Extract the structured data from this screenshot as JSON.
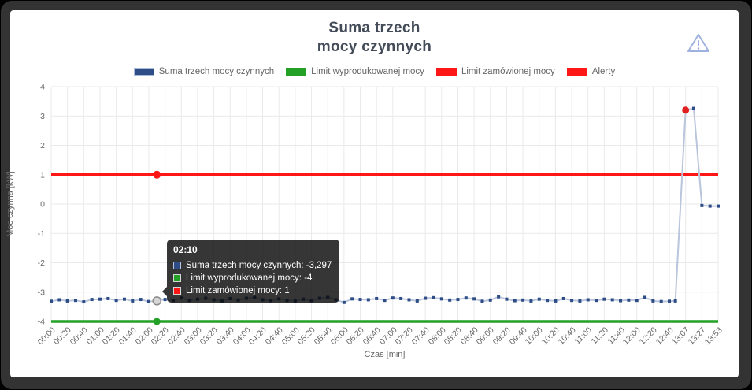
{
  "header": {
    "title_line1": "Suma trzech",
    "title_line2": "mocy czynnych"
  },
  "legend": {
    "items": [
      {
        "label": "Suma trzech mocy czynnych",
        "fill": "#2e4d87",
        "border": "#a9bbd8"
      },
      {
        "label": "Limit wyprodukowanej mocy",
        "fill": "#23a127",
        "border": "#23a127"
      },
      {
        "label": "Limit zamówionej mocy",
        "fill": "#ff1717",
        "border": "#ff1717"
      },
      {
        "label": "Alerty",
        "fill": "#ff1717",
        "border": "#ff1717"
      }
    ]
  },
  "colors": {
    "series_line": "#b9c5dc",
    "series_marker": "#2e4d87",
    "limit_green": "#23a127",
    "limit_red": "#ff1717",
    "alert_dot": "#e02020",
    "grid": "#e9e9e9",
    "tick_text": "#666666",
    "hover_gray_fill": "#d6d6d6",
    "hover_gray_stroke": "#8a8a8a",
    "warning_icon": "#9fb1de"
  },
  "tooltip": {
    "time": "02:10",
    "rows": [
      {
        "text": "Suma trzech mocy czynnych: -3,297",
        "fill": "#2e4d87",
        "border": "#b9c5dc"
      },
      {
        "text": "Limit wyprodukowanej mocy: -4",
        "fill": "#23a127",
        "border": "#d8d8d8"
      },
      {
        "text": "Limit zamówionej mocy: 1",
        "fill": "#ff1717",
        "border": "#d8d8d8"
      }
    ]
  },
  "chart_data": {
    "type": "line",
    "title": "Suma trzech mocy czynnych",
    "xlabel": "Czas [min]",
    "ylabel": "Moc czynna [kW]",
    "ylim": [
      -4,
      4
    ],
    "y_ticks": [
      4,
      3,
      2,
      1,
      0,
      -1,
      -2,
      -3,
      -4
    ],
    "grid": true,
    "legend_position": "top",
    "x_tick_labels": [
      "00:00",
      "00:20",
      "00:40",
      "01:00",
      "01:20",
      "01:40",
      "02:00",
      "02:20",
      "02:40",
      "03:00",
      "03:20",
      "03:40",
      "04:00",
      "04:20",
      "04:40",
      "05:00",
      "05:20",
      "05:40",
      "06:00",
      "06:20",
      "06:40",
      "07:00",
      "07:20",
      "07:40",
      "08:00",
      "08:20",
      "08:40",
      "09:00",
      "09:20",
      "09:40",
      "10:00",
      "10:20",
      "10:40",
      "11:00",
      "11:20",
      "11:40",
      "12:00",
      "12:20",
      "12:40",
      "13:07",
      "13:27",
      "13:53"
    ],
    "series": [
      {
        "name": "Suma trzech mocy czynnych",
        "points": [
          [
            "00:00",
            -3.31
          ],
          [
            "00:10",
            -3.26
          ],
          [
            "00:20",
            -3.3
          ],
          [
            "00:30",
            -3.28
          ],
          [
            "00:40",
            -3.33
          ],
          [
            "00:50",
            -3.25
          ],
          [
            "01:00",
            -3.24
          ],
          [
            "01:10",
            -3.22
          ],
          [
            "01:20",
            -3.28
          ],
          [
            "01:30",
            -3.24
          ],
          [
            "01:40",
            -3.3
          ],
          [
            "01:50",
            -3.25
          ],
          [
            "02:00",
            -3.32
          ],
          [
            "02:10",
            -3.297
          ],
          [
            "02:20",
            -3.25
          ],
          [
            "02:30",
            -3.28
          ],
          [
            "02:40",
            -3.2
          ],
          [
            "02:50",
            -3.28
          ],
          [
            "03:00",
            -3.24
          ],
          [
            "03:10",
            -3.21
          ],
          [
            "03:20",
            -3.26
          ],
          [
            "03:30",
            -3.3
          ],
          [
            "03:40",
            -3.22
          ],
          [
            "03:50",
            -3.27
          ],
          [
            "04:00",
            -3.21
          ],
          [
            "04:10",
            -3.18
          ],
          [
            "04:20",
            -3.26
          ],
          [
            "04:30",
            -3.29
          ],
          [
            "04:40",
            -3.23
          ],
          [
            "04:50",
            -3.28
          ],
          [
            "05:00",
            -3.3
          ],
          [
            "05:10",
            -3.24
          ],
          [
            "05:20",
            -3.29
          ],
          [
            "05:30",
            -3.21
          ],
          [
            "05:40",
            -3.18
          ],
          [
            "05:50",
            -3.26
          ],
          [
            "06:00",
            -3.35
          ],
          [
            "06:10",
            -3.23
          ],
          [
            "06:20",
            -3.25
          ],
          [
            "06:30",
            -3.26
          ],
          [
            "06:40",
            -3.22
          ],
          [
            "06:50",
            -3.28
          ],
          [
            "07:00",
            -3.2
          ],
          [
            "07:10",
            -3.22
          ],
          [
            "07:20",
            -3.26
          ],
          [
            "07:30",
            -3.3
          ],
          [
            "07:40",
            -3.21
          ],
          [
            "07:50",
            -3.19
          ],
          [
            "08:00",
            -3.23
          ],
          [
            "08:10",
            -3.27
          ],
          [
            "08:20",
            -3.25
          ],
          [
            "08:30",
            -3.2
          ],
          [
            "08:40",
            -3.23
          ],
          [
            "08:50",
            -3.31
          ],
          [
            "09:00",
            -3.27
          ],
          [
            "09:10",
            -3.16
          ],
          [
            "09:20",
            -3.24
          ],
          [
            "09:30",
            -3.29
          ],
          [
            "09:40",
            -3.27
          ],
          [
            "09:50",
            -3.3
          ],
          [
            "10:00",
            -3.24
          ],
          [
            "10:10",
            -3.28
          ],
          [
            "10:20",
            -3.3
          ],
          [
            "10:30",
            -3.22
          ],
          [
            "10:40",
            -3.28
          ],
          [
            "10:50",
            -3.3
          ],
          [
            "11:00",
            -3.26
          ],
          [
            "11:10",
            -3.28
          ],
          [
            "11:20",
            -3.24
          ],
          [
            "11:30",
            -3.26
          ],
          [
            "11:40",
            -3.29
          ],
          [
            "11:50",
            -3.27
          ],
          [
            "12:00",
            -3.28
          ],
          [
            "12:10",
            -3.18
          ],
          [
            "12:20",
            -3.3
          ],
          [
            "12:30",
            -3.32
          ],
          [
            "12:40",
            -3.31
          ],
          [
            "12:50",
            -3.3
          ],
          [
            "13:07",
            3.2
          ],
          [
            "13:17",
            3.26
          ],
          [
            "13:27",
            -0.05
          ],
          [
            "13:40",
            -0.07
          ],
          [
            "13:53",
            -0.07
          ]
        ]
      },
      {
        "name": "Limit wyprodukowanej mocy",
        "constant": -4
      },
      {
        "name": "Limit zamówionej mocy",
        "constant": 1
      }
    ],
    "alert_points": [
      {
        "time": "13:07",
        "value": 3.2
      }
    ],
    "hover": {
      "time": "02:10",
      "points": [
        {
          "series": "Suma trzech mocy czynnych",
          "value": -3.297,
          "style": "gray-ring"
        },
        {
          "series": "Limit wyprodukowanej mocy",
          "value": -4,
          "style": "green-dot"
        },
        {
          "series": "Limit zamówionej mocy",
          "value": 1,
          "style": "red-dot"
        }
      ]
    }
  }
}
